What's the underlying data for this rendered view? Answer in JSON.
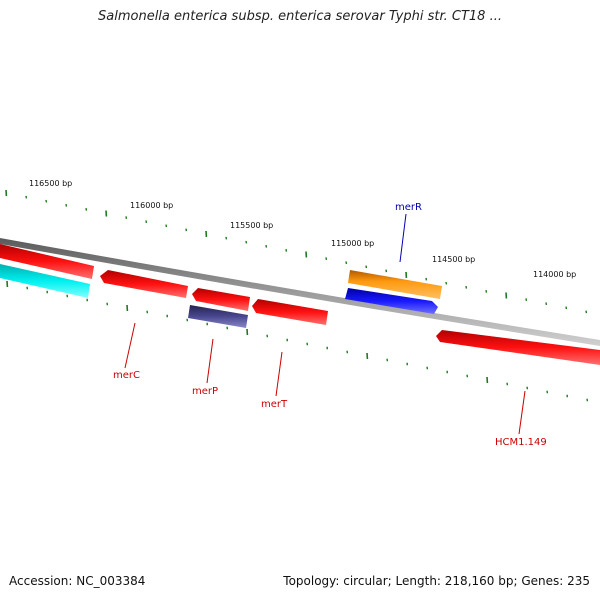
{
  "header": {
    "title": "Salmonella enterica subsp. enterica serovar Typhi str. CT18 ..."
  },
  "footer": {
    "accession": "Accession: NC_003384",
    "summary": "Topology: circular; Length: 218,160 bp; Genes: 235"
  },
  "colors": {
    "backbone": "#858585",
    "tick": "#1e7a1e",
    "gene_red": "#e30000",
    "gene_cyan": "#00d8d8",
    "gene_orange": "#f28c00",
    "gene_blue": "#1010e0",
    "gene_slate": "#3c3a7a",
    "label_red": "#cc0000",
    "label_blue": "#0000b0"
  },
  "scale_labels": [
    "116500 bp",
    "116000 bp",
    "115500 bp",
    "115000 bp",
    "114500 bp",
    "114000 bp"
  ],
  "gene_labels": [
    {
      "text": "merR",
      "color_key": "label_blue"
    },
    {
      "text": "merC",
      "color_key": "label_red"
    },
    {
      "text": "merP",
      "color_key": "label_red"
    },
    {
      "text": "merT",
      "color_key": "label_red"
    },
    {
      "text": "HCM1.149",
      "color_key": "label_red"
    }
  ],
  "genes": [
    {
      "label": "",
      "color_key": "gene_red"
    },
    {
      "label": "",
      "color_key": "gene_cyan"
    },
    {
      "label": "merC",
      "color_key": "gene_red"
    },
    {
      "label": "merP",
      "color_key": "gene_red"
    },
    {
      "label": "merP",
      "color_key": "gene_slate"
    },
    {
      "label": "merT",
      "color_key": "gene_red"
    },
    {
      "label": "merR",
      "color_key": "gene_orange"
    },
    {
      "label": "merR",
      "color_key": "gene_blue"
    },
    {
      "label": "HCM1.149",
      "color_key": "gene_red"
    }
  ]
}
